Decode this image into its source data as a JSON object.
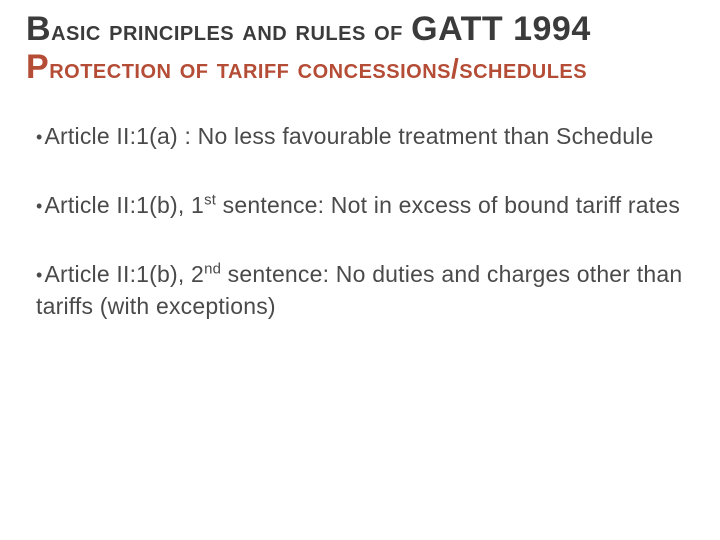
{
  "title": {
    "line1_parts": [
      {
        "text": "B",
        "cls": "t-big"
      },
      {
        "text": "asic principles and rules of ",
        "cls": "t-small"
      },
      {
        "text": "GATT 1994",
        "cls": "t-big"
      }
    ],
    "line2_parts": [
      {
        "text": "P",
        "cls": "t-accent-big"
      },
      {
        "text": "rotection of tariff concessions/schedules",
        "cls": "t-accent-small"
      }
    ]
  },
  "bullets": [
    {
      "pre": "Article II:1(a) : No less favourable treatment than Schedule",
      "ord": "",
      "post": ""
    },
    {
      "pre": "Article II:1(b), 1",
      "ord": "st",
      "post": " sentence: Not in excess of bound tariff rates"
    },
    {
      "pre": "Article II:1(b), 2",
      "ord": "nd",
      "post": " sentence: No duties and charges other than tariffs (with exceptions)"
    }
  ],
  "colors": {
    "text": "#4a4a4a",
    "title_dark": "#3b3b3b",
    "accent": "#b44c36",
    "background": "#ffffff"
  },
  "typography": {
    "title_small_pt": 28,
    "title_big_pt": 34,
    "body_pt": 23,
    "font_family": "Trebuchet MS"
  }
}
